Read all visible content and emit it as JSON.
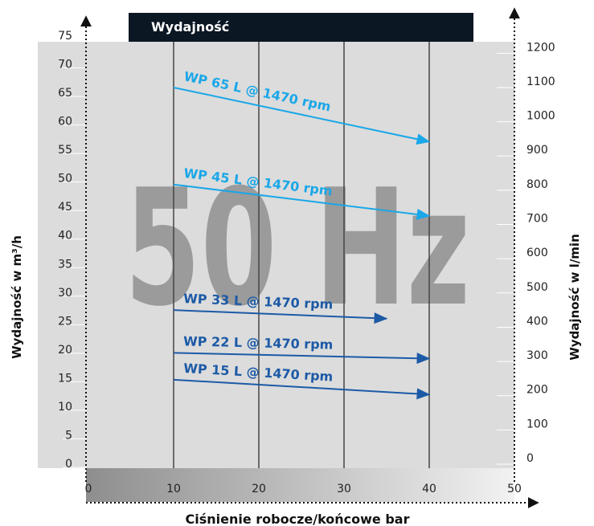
{
  "title": "Wydajność",
  "watermark": "50 Hz",
  "chart_data": {
    "type": "line",
    "title": "Wydajność",
    "xlabel": "Ciśnienie robocze/końcowe bar",
    "ylabel_left": "Wydajność w m³/h",
    "ylabel_right": "Wydajność w l/min",
    "xlim": [
      0,
      50
    ],
    "ylim_left": [
      0,
      75
    ],
    "ylim_right": [
      0,
      1250
    ],
    "x_ticks": [
      0,
      10,
      20,
      30,
      40,
      50
    ],
    "y_left_ticks": [
      0,
      5,
      10,
      15,
      20,
      25,
      30,
      35,
      40,
      45,
      50,
      55,
      60,
      65,
      70,
      75
    ],
    "y_right_ticks": [
      0,
      100,
      200,
      300,
      400,
      500,
      600,
      700,
      800,
      900,
      1000,
      1100,
      1200
    ],
    "grid": true,
    "series": [
      {
        "name": "WP 65 L @ 1470 rpm",
        "x": [
          10,
          40
        ],
        "y": [
          66,
          56.5
        ],
        "color": "#1aa7e8"
      },
      {
        "name": "WP 45 L @ 1470 rpm",
        "x": [
          10,
          40
        ],
        "y": [
          49,
          43.5
        ],
        "color": "#1aa7e8"
      },
      {
        "name": "WP 33 L @ 1470 rpm",
        "x": [
          10,
          35
        ],
        "y": [
          27,
          25.5
        ],
        "color": "#1c5aa6"
      },
      {
        "name": "WP 22 L @ 1470 rpm",
        "x": [
          10,
          40
        ],
        "y": [
          19.5,
          18.5
        ],
        "color": "#1c5aa6"
      },
      {
        "name": "WP 15 L @ 1470 rpm",
        "x": [
          10,
          40
        ],
        "y": [
          14.8,
          12.2
        ],
        "color": "#1c5aa6"
      }
    ]
  }
}
